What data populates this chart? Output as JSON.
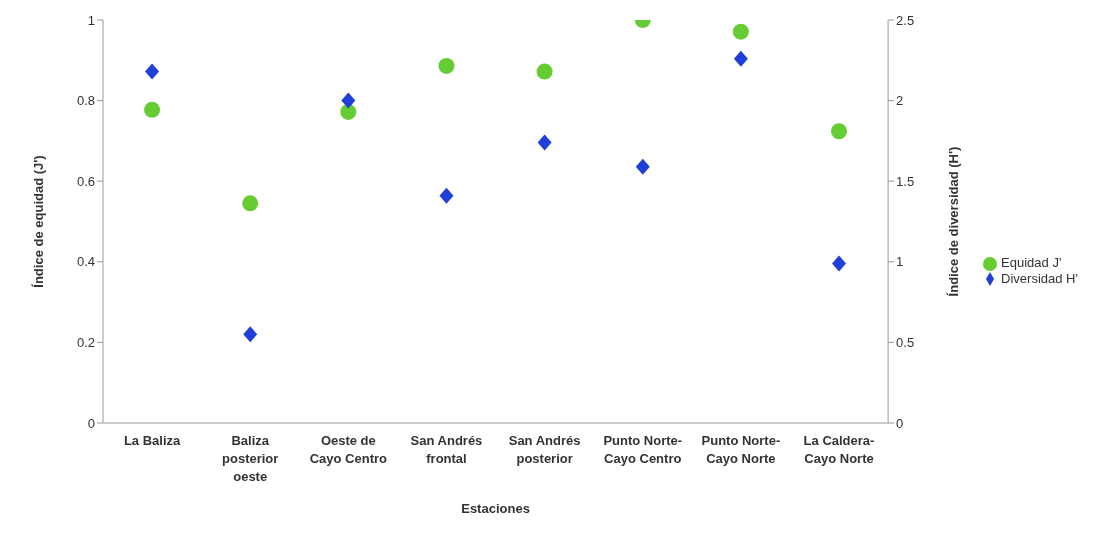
{
  "chart_data": {
    "type": "scatter",
    "xlabel": "Estaciones",
    "ylabel": "Índice de equidad (J')",
    "y2label": "Índice de diversidad (H')",
    "categories": [
      "La Baliza",
      "Baliza posterior oeste",
      "Oeste de Cayo Centro",
      "San Andrés frontal",
      "San Andrés posterior",
      "Punto Norte-Cayo Centro",
      "Punto Norte-Cayo Norte",
      "La Caldera-Cayo Norte"
    ],
    "series": [
      {
        "name": "Equidad J'",
        "color": "#66cc33",
        "marker": "circle",
        "values": [
          0.777,
          0.545,
          0.772,
          0.886,
          0.872,
          1.0,
          0.971,
          0.724
        ]
      },
      {
        "name": "Diversidad H'",
        "color": "#1f3fd9",
        "marker": "diamond",
        "axis": "y2",
        "values": [
          2.18,
          0.55,
          2.0,
          1.41,
          1.74,
          1.59,
          2.26,
          0.99
        ]
      }
    ],
    "ylim": [
      0,
      1
    ],
    "yticks": [
      0,
      0.2,
      0.4,
      0.6,
      0.8,
      1
    ],
    "y2lim": [
      0,
      2.5
    ],
    "y2ticks": [
      0,
      0.5,
      1,
      1.5,
      2,
      2.5
    ],
    "grid": false,
    "legend": "right"
  }
}
